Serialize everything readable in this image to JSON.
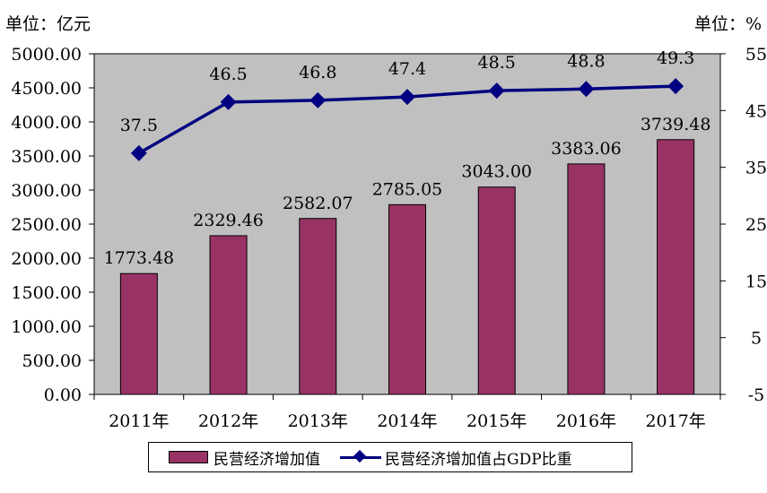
{
  "units": {
    "left": "单位：亿元",
    "right": "单位：%"
  },
  "legend": {
    "bar_label": "民营经济增加值",
    "line_label": "民营经济增加值占GDP比重"
  },
  "colors": {
    "plot_bg": "#c0c0c0",
    "bar": "#993366",
    "line": "#000080"
  },
  "chart_data": {
    "type": "bar",
    "categories": [
      "2011年",
      "2012年",
      "2013年",
      "2014年",
      "2015年",
      "2016年",
      "2017年"
    ],
    "series": [
      {
        "name": "民营经济增加值",
        "type": "bar",
        "axis": "left",
        "values": [
          1773.48,
          2329.46,
          2582.07,
          2785.05,
          3043.0,
          3383.06,
          3739.48
        ],
        "labels": [
          "1773.48",
          "2329.46",
          "2582.07",
          "2785.05",
          "3043.00",
          "3383.06",
          "3739.48"
        ]
      },
      {
        "name": "民营经济增加值占GDP比重",
        "type": "line",
        "axis": "right",
        "marker": "diamond",
        "values": [
          37.5,
          46.5,
          46.8,
          47.4,
          48.5,
          48.8,
          49.3
        ],
        "labels": [
          "37.5",
          "46.5",
          "46.8",
          "47.4",
          "48.5",
          "48.8",
          "49.3"
        ]
      }
    ],
    "y_left": {
      "range": [
        0,
        5000
      ],
      "ticks": [
        "0.00",
        "500.00",
        "1000.00",
        "1500.00",
        "2000.00",
        "2500.00",
        "3000.00",
        "3500.00",
        "4000.00",
        "4500.00",
        "5000.00"
      ]
    },
    "y_right": {
      "range": [
        -5,
        55
      ],
      "ticks": [
        "-5",
        "5",
        "15",
        "25",
        "35",
        "45",
        "55"
      ]
    },
    "grid": false,
    "legend_position": "bottom"
  }
}
